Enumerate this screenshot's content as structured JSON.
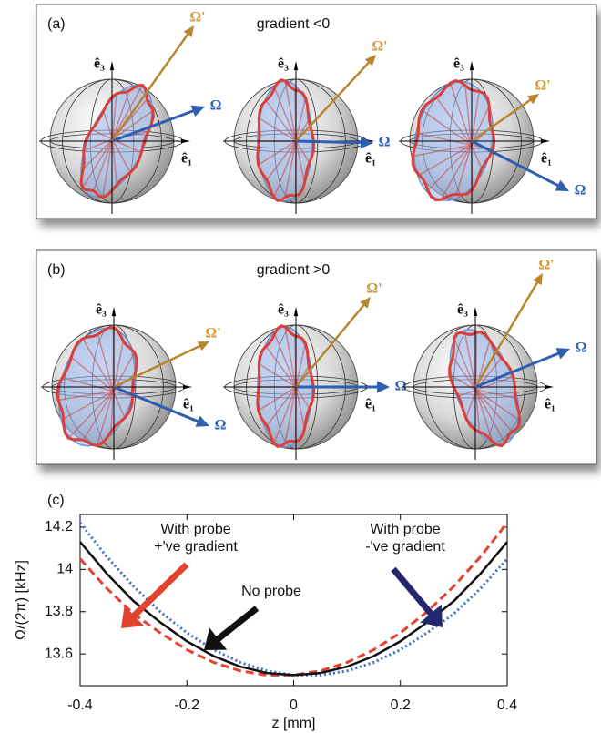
{
  "panels": [
    {
      "label": "(a)",
      "title": "gradient <0",
      "spheres": [
        {
          "e3": "ê₃",
          "e1": "ê₁",
          "omega": "Ω",
          "omega_prime": "Ω'"
        },
        {
          "e3": "ê₃",
          "e1": "ê₁",
          "omega": "Ω",
          "omega_prime": "Ω'"
        },
        {
          "e3": "ê₃",
          "e1": "ê₁",
          "omega": "Ω",
          "omega_prime": "Ω'"
        }
      ]
    },
    {
      "label": "(b)",
      "title": "gradient >0",
      "spheres": [
        {
          "e3": "ê₃",
          "e1": "ê₁",
          "omega": "Ω",
          "omega_prime": "Ω'"
        },
        {
          "e3": "ê₃",
          "e1": "ê₁",
          "omega": "Ω",
          "omega_prime": "Ω'"
        },
        {
          "e3": "ê₃",
          "e1": "ê₁",
          "omega": "Ω",
          "omega_prime": "Ω'"
        }
      ]
    }
  ],
  "chart_data": {
    "type": "line",
    "label": "(c)",
    "x_label": "z [mm]",
    "y_label": "Ω/(2π) [kHz]",
    "x": [
      -0.4,
      -0.35,
      -0.3,
      -0.25,
      -0.2,
      -0.15,
      -0.1,
      -0.05,
      0,
      0.05,
      0.1,
      0.15,
      0.2,
      0.25,
      0.3,
      0.35,
      0.4
    ],
    "series": [
      {
        "color": "#3a6fc4",
        "style": "dotted",
        "values": [
          14.22,
          14.06,
          13.92,
          13.8,
          13.7,
          13.62,
          13.56,
          13.52,
          13.5,
          13.5,
          13.52,
          13.56,
          13.62,
          13.7,
          13.79,
          13.91,
          14.05
        ]
      },
      {
        "color": "#e8402f",
        "style": "dashed",
        "values": [
          14.05,
          13.91,
          13.79,
          13.7,
          13.62,
          13.56,
          13.52,
          13.5,
          13.5,
          13.52,
          13.56,
          13.62,
          13.7,
          13.8,
          13.92,
          14.06,
          14.22
        ]
      },
      {
        "color": "#111111",
        "style": "solid",
        "values": [
          14.13,
          13.98,
          13.85,
          13.75,
          13.66,
          13.59,
          13.54,
          13.51,
          13.5,
          13.51,
          13.54,
          13.59,
          13.66,
          13.75,
          13.85,
          13.98,
          14.13
        ]
      }
    ],
    "xlim": [
      -0.4,
      0.4
    ],
    "ylim": [
      13.45,
      14.26
    ],
    "xticks": [
      -0.4,
      -0.2,
      0,
      0.2,
      0.4
    ],
    "yticks": [
      13.6,
      13.8,
      14,
      14.2
    ],
    "annotations": [
      {
        "lines": [
          "With probe",
          "+'ve gradient"
        ],
        "color": "#e0442f"
      },
      {
        "lines": [
          "No probe"
        ],
        "color": "#111111"
      },
      {
        "lines": [
          "With probe",
          "-'ve gradient"
        ],
        "color": "#26266e"
      }
    ]
  }
}
